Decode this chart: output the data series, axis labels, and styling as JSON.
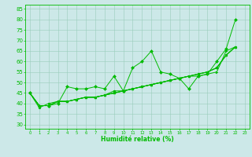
{
  "xlabel": "Humidité relative (%)",
  "bg_color": "#cce8e8",
  "grid_color": "#99ccbb",
  "line_color": "#00bb00",
  "marker_color": "#00bb00",
  "xlim": [
    -0.5,
    23.5
  ],
  "ylim": [
    28,
    87
  ],
  "yticks": [
    30,
    35,
    40,
    45,
    50,
    55,
    60,
    65,
    70,
    75,
    80,
    85
  ],
  "xticks": [
    0,
    1,
    2,
    3,
    4,
    5,
    6,
    7,
    8,
    9,
    10,
    11,
    12,
    13,
    14,
    15,
    16,
    17,
    18,
    19,
    20,
    21,
    22,
    23
  ],
  "series": [
    [
      45,
      39,
      39,
      40,
      48,
      47,
      47,
      48,
      47,
      53,
      46,
      57,
      60,
      65,
      55,
      54,
      52,
      47,
      53,
      54,
      60,
      66,
      80
    ],
    [
      45,
      39,
      39,
      41,
      41,
      42,
      43,
      43,
      44,
      45,
      46,
      47,
      48,
      49,
      50,
      51,
      52,
      53,
      53,
      54,
      55,
      65,
      67
    ],
    [
      45,
      39,
      39,
      41,
      41,
      42,
      43,
      43,
      44,
      45,
      46,
      47,
      48,
      49,
      50,
      51,
      52,
      53,
      54,
      55,
      57,
      63,
      67
    ],
    [
      45,
      39,
      39,
      41,
      41,
      42,
      43,
      43,
      44,
      45,
      46,
      47,
      48,
      49,
      50,
      51,
      52,
      53,
      54,
      55,
      57,
      63,
      67
    ],
    [
      45,
      38,
      40,
      41,
      41,
      42,
      43,
      43,
      44,
      46,
      46,
      47,
      48,
      49,
      50,
      51,
      52,
      53,
      54,
      55,
      57,
      63,
      67
    ]
  ],
  "markers": [
    "D",
    ">",
    "s",
    "^",
    "o"
  ],
  "xlabel_fontsize": 5.5,
  "xlabel_fontweight": "bold",
  "ytick_fontsize": 5,
  "xtick_fontsize": 3.8,
  "line_width": 0.7,
  "marker_size": 2.0
}
